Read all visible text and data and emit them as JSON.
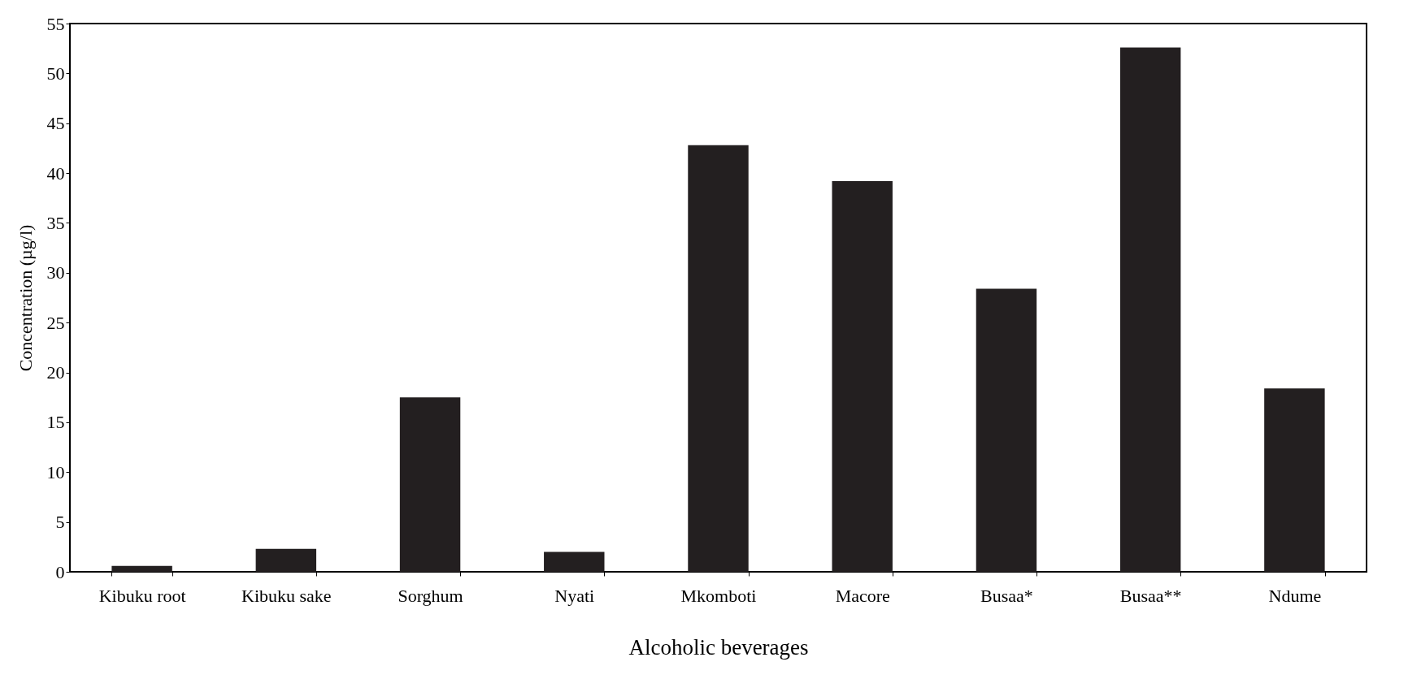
{
  "chart_data": {
    "type": "bar",
    "xlabel": "Alcoholic beverages",
    "ylabel": "Concentration (µg/l)",
    "categories": [
      "Kibuku root",
      "Kibuku sake",
      "Sorghum",
      "Nyati",
      "Mkomboti",
      "Macore",
      "Busaa*",
      "Busaa**",
      "Ndume"
    ],
    "values": [
      0.6,
      2.3,
      17.5,
      2.0,
      42.8,
      39.2,
      28.4,
      52.6,
      18.4
    ],
    "color": "#231f20",
    "ylim": [
      0,
      55
    ],
    "yticks": [
      0,
      5,
      10,
      15,
      20,
      25,
      30,
      35,
      40,
      45,
      50,
      55
    ],
    "grid": false
  }
}
